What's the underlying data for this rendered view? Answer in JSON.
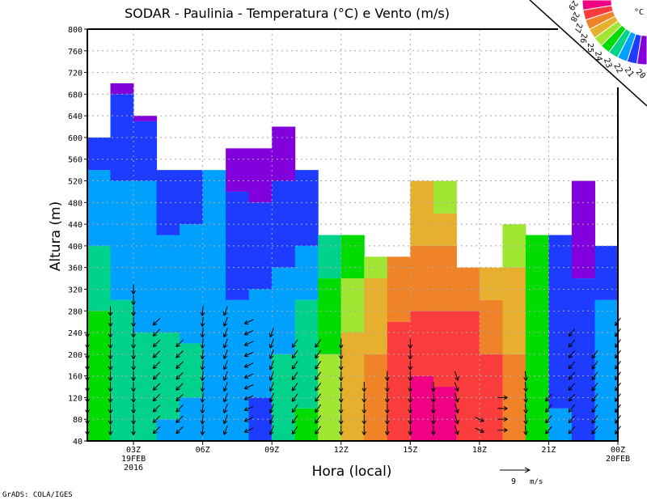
{
  "chart_data": {
    "type": "heatmap",
    "title": "SODAR - Paulinia - Temperatura (°C) e Vento (m/s)",
    "xlabel": "Hora (local)",
    "ylabel": "Altura (m)",
    "ylim": [
      40,
      800
    ],
    "yticks": [
      40,
      80,
      120,
      160,
      200,
      240,
      280,
      320,
      360,
      400,
      440,
      480,
      520,
      560,
      600,
      640,
      680,
      720,
      760,
      800
    ],
    "xlim_hours": [
      1,
      24
    ],
    "xticks": [
      {
        "hour": 3,
        "label": "03Z",
        "sub1": "19FEB",
        "sub2": "2016"
      },
      {
        "hour": 6,
        "label": "06Z"
      },
      {
        "hour": 9,
        "label": "09Z"
      },
      {
        "hour": 12,
        "label": "12Z"
      },
      {
        "hour": 15,
        "label": "15Z"
      },
      {
        "hour": 18,
        "label": "18Z"
      },
      {
        "hour": 21,
        "label": "21Z"
      },
      {
        "hour": 24,
        "label": "00Z",
        "sub1": "20FEB"
      }
    ],
    "grid": true,
    "legend": {
      "unit": "°C",
      "placement": "top-right",
      "levels": [
        29,
        28,
        27,
        26,
        25,
        24,
        23,
        22,
        21,
        20
      ],
      "colors": [
        "#f00082",
        "#fa3c3c",
        "#f08228",
        "#e6af2d",
        "#a0e632",
        "#00dc00",
        "#00d28c",
        "#00a0ff",
        "#1e3cff",
        "#8200dc"
      ]
    },
    "temperature_columns_note": "each column = 1 hour starting 01Z; segments are [top_height_m, temperature_C] from bottom",
    "temperature_columns": [
      [
        [
          280,
          24.5
        ],
        [
          400,
          23.5
        ],
        [
          540,
          22.5
        ],
        [
          600,
          21.5
        ]
      ],
      [
        [
          300,
          23.5
        ],
        [
          520,
          22.5
        ],
        [
          680,
          21.5
        ],
        [
          700,
          20.5
        ]
      ],
      [
        [
          240,
          23.5
        ],
        [
          520,
          22.5
        ],
        [
          630,
          21.5
        ],
        [
          640,
          20.5
        ]
      ],
      [
        [
          80,
          22.5
        ],
        [
          240,
          23.5
        ],
        [
          420,
          22.5
        ],
        [
          540,
          21.5
        ]
      ],
      [
        [
          120,
          22.5
        ],
        [
          220,
          23.5
        ],
        [
          440,
          22.5
        ],
        [
          540,
          21.5
        ]
      ],
      [
        [
          540,
          22.5
        ]
      ],
      [
        [
          300,
          22.5
        ],
        [
          500,
          21.5
        ],
        [
          580,
          20.5
        ]
      ],
      [
        [
          120,
          21.5
        ],
        [
          320,
          22.5
        ],
        [
          480,
          21.5
        ],
        [
          580,
          20.5
        ]
      ],
      [
        [
          200,
          23.5
        ],
        [
          360,
          22.5
        ],
        [
          520,
          21.5
        ],
        [
          620,
          20.5
        ]
      ],
      [
        [
          100,
          24.5
        ],
        [
          300,
          23.5
        ],
        [
          400,
          22.5
        ],
        [
          540,
          21.5
        ]
      ],
      [
        [
          200,
          25.5
        ],
        [
          340,
          24.5
        ],
        [
          420,
          23.5
        ]
      ],
      [
        [
          240,
          26.5
        ],
        [
          340,
          25.5
        ],
        [
          420,
          24.5
        ]
      ],
      [
        [
          200,
          27.5
        ],
        [
          340,
          26.5
        ],
        [
          380,
          25.5
        ]
      ],
      [
        [
          260,
          28.5
        ],
        [
          380,
          27.5
        ]
      ],
      [
        [
          160,
          29.5
        ],
        [
          280,
          28.5
        ],
        [
          400,
          27.5
        ],
        [
          520,
          26.5
        ]
      ],
      [
        [
          140,
          29.5
        ],
        [
          280,
          28.5
        ],
        [
          400,
          27.5
        ],
        [
          460,
          26.5
        ],
        [
          520,
          25.5
        ]
      ],
      [
        [
          280,
          28.5
        ],
        [
          360,
          27.5
        ]
      ],
      [
        [
          200,
          28.5
        ],
        [
          300,
          27.5
        ],
        [
          360,
          26.5
        ]
      ],
      [
        [
          200,
          27.5
        ],
        [
          360,
          26.5
        ],
        [
          440,
          25.5
        ]
      ],
      [
        [
          420,
          24.5
        ]
      ],
      [
        [
          100,
          22.5
        ],
        [
          420,
          21.5
        ]
      ],
      [
        [
          340,
          21.5
        ],
        [
          520,
          20.5
        ]
      ],
      [
        [
          300,
          22.5
        ],
        [
          400,
          21.5
        ]
      ]
    ],
    "wind_note": "arrow columns per hour: top height (m), direction arrow points (deg, 180=south)",
    "wind": [
      {
        "hour": 1,
        "top": 240,
        "dir": 180
      },
      {
        "hour": 2,
        "top": 280,
        "dir": 180
      },
      {
        "hour": 3,
        "top": 320,
        "dir": 180
      },
      {
        "hour": 4,
        "top": 260,
        "dir": 225
      },
      {
        "hour": 5,
        "top": 220,
        "dir": 225
      },
      {
        "hour": 6,
        "top": 280,
        "dir": 185
      },
      {
        "hour": 7,
        "top": 280,
        "dir": 200
      },
      {
        "hour": 8,
        "top": 260,
        "dir": 245
      },
      {
        "hour": 9,
        "top": 240,
        "dir": 200
      },
      {
        "hour": 10,
        "top": 220,
        "dir": 215
      },
      {
        "hour": 11,
        "top": 220,
        "dir": 215
      },
      {
        "hour": 12,
        "top": 220,
        "dir": 180
      },
      {
        "hour": 13,
        "top": 140,
        "dir": 180
      },
      {
        "hour": 14,
        "top": 160,
        "dir": 180
      },
      {
        "hour": 15,
        "top": 220,
        "dir": 180
      },
      {
        "hour": 16,
        "top": 150,
        "dir": 180
      },
      {
        "hour": 17,
        "top": 160,
        "dir": 160
      },
      {
        "hour": 18,
        "top": 80,
        "dir": 115
      },
      {
        "hour": 19,
        "top": 120,
        "dir": 90
      },
      {
        "hour": 20,
        "top": 160,
        "dir": 175
      },
      {
        "hour": 21,
        "top": 120,
        "dir": 220
      },
      {
        "hour": 22,
        "top": 240,
        "dir": 220
      },
      {
        "hour": 23,
        "top": 200,
        "dir": 215
      },
      {
        "hour": 24,
        "top": 260,
        "dir": 215
      }
    ],
    "wind_reference": {
      "value": 9,
      "unit": "m/s"
    }
  },
  "labels": {
    "ref_value": "9",
    "ref_unit": "m/s",
    "credit": "GrADS: COLA/IGES"
  }
}
